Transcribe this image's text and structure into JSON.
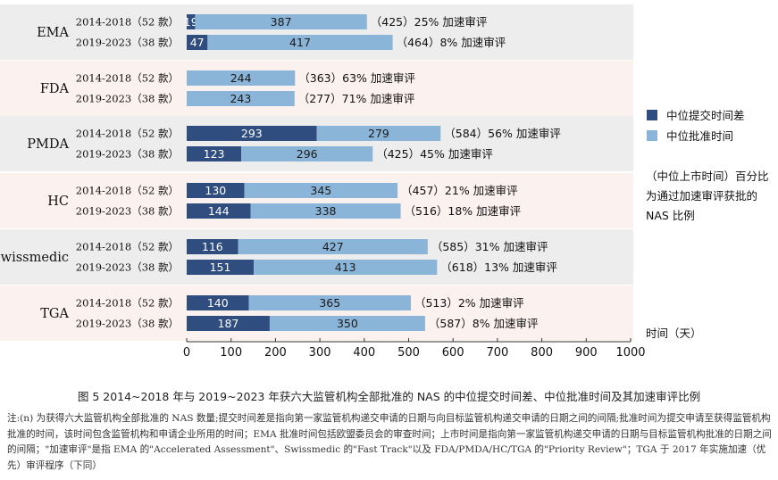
{
  "chart_data": {
    "type": "bar",
    "orientation": "horizontal",
    "stacked": true,
    "agencies": [
      "EMA",
      "FDA",
      "PMDA",
      "HC",
      "Swissmedic",
      "TGA"
    ],
    "periods": [
      "2014-2018（52 款）",
      "2019-2023（38 款）"
    ],
    "series": [
      {
        "name": "中位提交时间差",
        "color": "#2f4d7e",
        "values": [
          [
            19,
            47
          ],
          [
            0,
            0
          ],
          [
            293,
            123
          ],
          [
            130,
            144
          ],
          [
            116,
            151
          ],
          [
            140,
            187
          ]
        ],
        "labels": [
          [
            "19",
            "47"
          ],
          [
            "",
            ""
          ],
          [
            "293",
            "123"
          ],
          [
            "130",
            "144"
          ],
          [
            "116",
            "151"
          ],
          [
            "140",
            "187"
          ]
        ]
      },
      {
        "name": "中位批准时间",
        "color": "#8bb5d8",
        "values": [
          [
            387,
            417
          ],
          [
            244,
            243
          ],
          [
            279,
            296
          ],
          [
            345,
            338
          ],
          [
            427,
            413
          ],
          [
            365,
            350
          ]
        ],
        "labels": [
          [
            "387",
            "417"
          ],
          [
            "244",
            "243"
          ],
          [
            "279",
            "296"
          ],
          [
            "345",
            "338"
          ],
          [
            "427",
            "413"
          ],
          [
            "365",
            "350"
          ]
        ]
      }
    ],
    "annotations": [
      [
        "（425）25% 加速审评",
        "（464）8% 加速审评"
      ],
      [
        "（363）63% 加速审评",
        "（277）71% 加速审评"
      ],
      [
        "（584）56% 加速审评",
        "（425）45% 加速审评"
      ],
      [
        "（457）21% 加速审评",
        "（516）18% 加速审评"
      ],
      [
        "（585）31% 加速审评",
        "（618）13% 加速审评"
      ],
      [
        "（513）2% 加速审评",
        "（587）8% 加速审评"
      ]
    ],
    "xlim": [
      0,
      1000
    ],
    "xticks": [
      "0",
      "100",
      "200",
      "300",
      "400",
      "500",
      "600",
      "700",
      "800",
      "900",
      "1000"
    ],
    "xlabel": "时间（天）",
    "legend_position": "right",
    "legend_note": [
      "（中位上市时间）百分比",
      "为通过加速审评获批的",
      "NAS 比例"
    ],
    "band_colors": [
      "#ededed",
      "#fbf1ef"
    ]
  },
  "caption": "图 5   2014~2018 年与 2019~2023 年获六大监管机构全部批准的 NAS 的中位提交时间差、中位批准时间及其加速审评比例",
  "note": "注:(n) 为获得六大监管机构全部批准的 NAS 数量;提交时间差是指向第一家监管机构递交申请的日期与向目标监管机构递交申请的日期之间的间隔;批准时间为提交申请至获得监管机构批准的时间，该时间包含监管机构和申请企业所用的时间；EMA 批准时间包括欧盟委员会的审查时间；上市时间是指向第一家监管机构递交申请的日期与目标监管机构批准的日期之间的间隔；\"加速审评\"是指 EMA 的\"Accelerated Assessment\"、Swissmedic 的\"Fast Track\"以及 FDA/PMDA/HC/TGA 的\"Priority Review\"；TGA 于 2017 年实施加速（优先）审评程序（下同）"
}
